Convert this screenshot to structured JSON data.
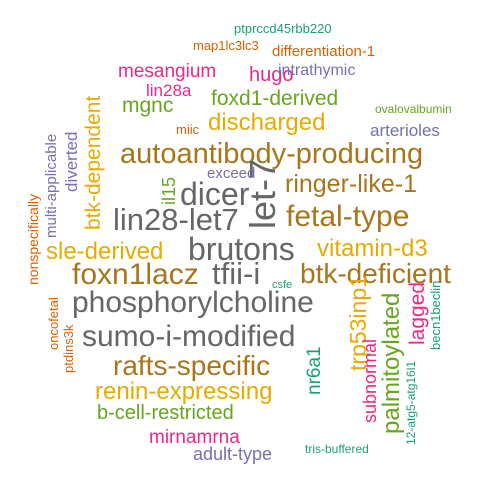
{
  "colors": {
    "teal": "#1b9e77",
    "orange": "#d95f02",
    "purple": "#7570b3",
    "magenta": "#e7298a",
    "green": "#66a61e",
    "gold": "#e6ab02",
    "brown": "#a6761d",
    "gray": "#666666"
  },
  "words": [
    {
      "text": "ptprccd45rbb220",
      "color": "teal"
    },
    {
      "text": "map1lc3lc3",
      "color": "orange"
    },
    {
      "text": "differentiation-1",
      "color": "orange"
    },
    {
      "text": "mesangium",
      "color": "magenta"
    },
    {
      "text": "hugo",
      "color": "magenta"
    },
    {
      "text": "intrathymic",
      "color": "purple"
    },
    {
      "text": "lin28a",
      "color": "magenta"
    },
    {
      "text": "mgnc",
      "color": "green"
    },
    {
      "text": "foxd1-derived",
      "color": "green"
    },
    {
      "text": "ovalovalbumin",
      "color": "green"
    },
    {
      "text": "btk-dependent",
      "color": "gold"
    },
    {
      "text": "miic",
      "color": "orange"
    },
    {
      "text": "discharged",
      "color": "gold"
    },
    {
      "text": "arterioles",
      "color": "purple"
    },
    {
      "text": "multi-applicable",
      "color": "purple"
    },
    {
      "text": "diverted",
      "color": "purple"
    },
    {
      "text": "autoantibody-producing",
      "color": "brown"
    },
    {
      "text": "nonspecifically",
      "color": "orange"
    },
    {
      "text": "il15",
      "color": "green"
    },
    {
      "text": "exceed",
      "color": "purple"
    },
    {
      "text": "dicer",
      "color": "gray"
    },
    {
      "text": "let-7",
      "color": "gray"
    },
    {
      "text": "ringer-like-1",
      "color": "brown"
    },
    {
      "text": "lin28-let7",
      "color": "gray"
    },
    {
      "text": "fetal-type",
      "color": "brown"
    },
    {
      "text": "sle-derived",
      "color": "gold"
    },
    {
      "text": "brutons",
      "color": "gray"
    },
    {
      "text": "vitamin-d3",
      "color": "gold"
    },
    {
      "text": "foxn1lacz",
      "color": "brown"
    },
    {
      "text": "tfii-i",
      "color": "gray"
    },
    {
      "text": "btk-deficient",
      "color": "brown"
    },
    {
      "text": "csfe",
      "color": "teal"
    },
    {
      "text": "oncofetal",
      "color": "orange"
    },
    {
      "text": "phosphorylcholine",
      "color": "gray"
    },
    {
      "text": "trp53inp1",
      "color": "gold"
    },
    {
      "text": "palmitoylated",
      "color": "green"
    },
    {
      "text": "lagged",
      "color": "magenta"
    },
    {
      "text": "becn1beclin",
      "color": "teal"
    },
    {
      "text": "ptdins3k",
      "color": "orange"
    },
    {
      "text": "sumo-i-modified",
      "color": "gray"
    },
    {
      "text": "rafts-specific",
      "color": "brown"
    },
    {
      "text": "nr6a1",
      "color": "teal"
    },
    {
      "text": "subnormal",
      "color": "magenta"
    },
    {
      "text": "12-atg5-atg16l1",
      "color": "teal"
    },
    {
      "text": "renin-expressing",
      "color": "gold"
    },
    {
      "text": "b-cell-restricted",
      "color": "green"
    },
    {
      "text": "mirnamrna",
      "color": "magenta"
    },
    {
      "text": "tris-buffered",
      "color": "teal"
    },
    {
      "text": "adult-type",
      "color": "purple"
    }
  ]
}
